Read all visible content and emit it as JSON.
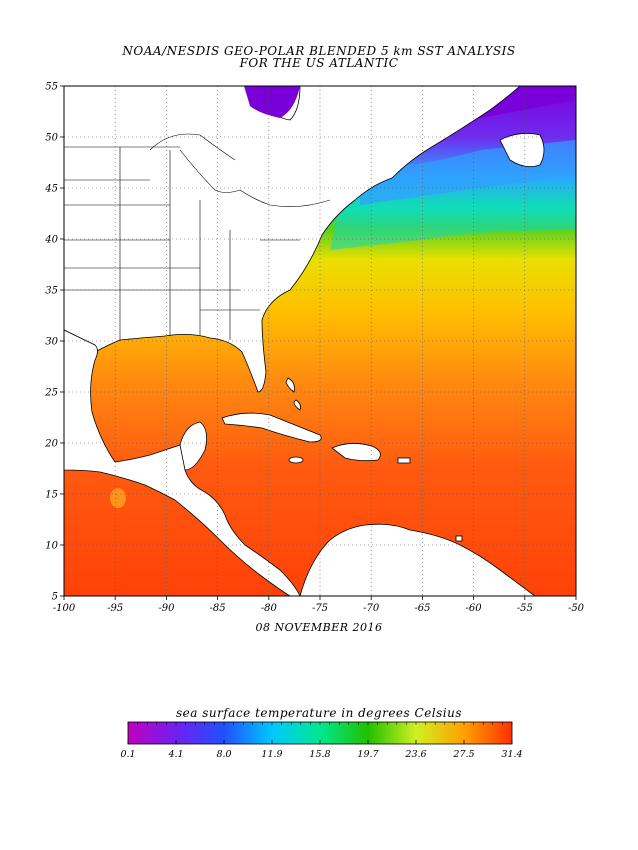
{
  "title_line1": "NOAA/NESDIS GEO-POLAR BLENDED 5 km SST ANALYSIS",
  "title_line2": "FOR THE US ATLANTIC",
  "date": "08 NOVEMBER 2016",
  "map": {
    "lon_range": [
      -100,
      -50
    ],
    "lat_range": [
      5,
      55
    ],
    "lon_ticks": [
      -100,
      -95,
      -90,
      -85,
      -80,
      -75,
      -70,
      -65,
      -60,
      -55,
      -50
    ],
    "lat_ticks": [
      5,
      10,
      15,
      20,
      25,
      30,
      35,
      40,
      45,
      50,
      55
    ],
    "lon_tick_labels": [
      "-100",
      "-95",
      "-90",
      "-85",
      "-80",
      "-75",
      "-70",
      "-65",
      "-60",
      "-55",
      "-50"
    ],
    "lat_tick_labels": [
      "5",
      "10",
      "15",
      "20",
      "25",
      "30",
      "35",
      "40",
      "45",
      "50",
      "55"
    ],
    "grid": "dotted",
    "land_color": "#ffffff"
  },
  "colorbar": {
    "title": "sea surface temperature in degrees Celsius",
    "tick_labels": [
      "0.1",
      "4.1",
      "8.0",
      "11.9",
      "15.8",
      "19.7",
      "23.6",
      "27.5",
      "31.4"
    ],
    "colors": [
      "#c000c0",
      "#7020f0",
      "#2050ff",
      "#00c8ff",
      "#00e890",
      "#20c000",
      "#d0f020",
      "#ffa000",
      "#ff3000"
    ]
  }
}
